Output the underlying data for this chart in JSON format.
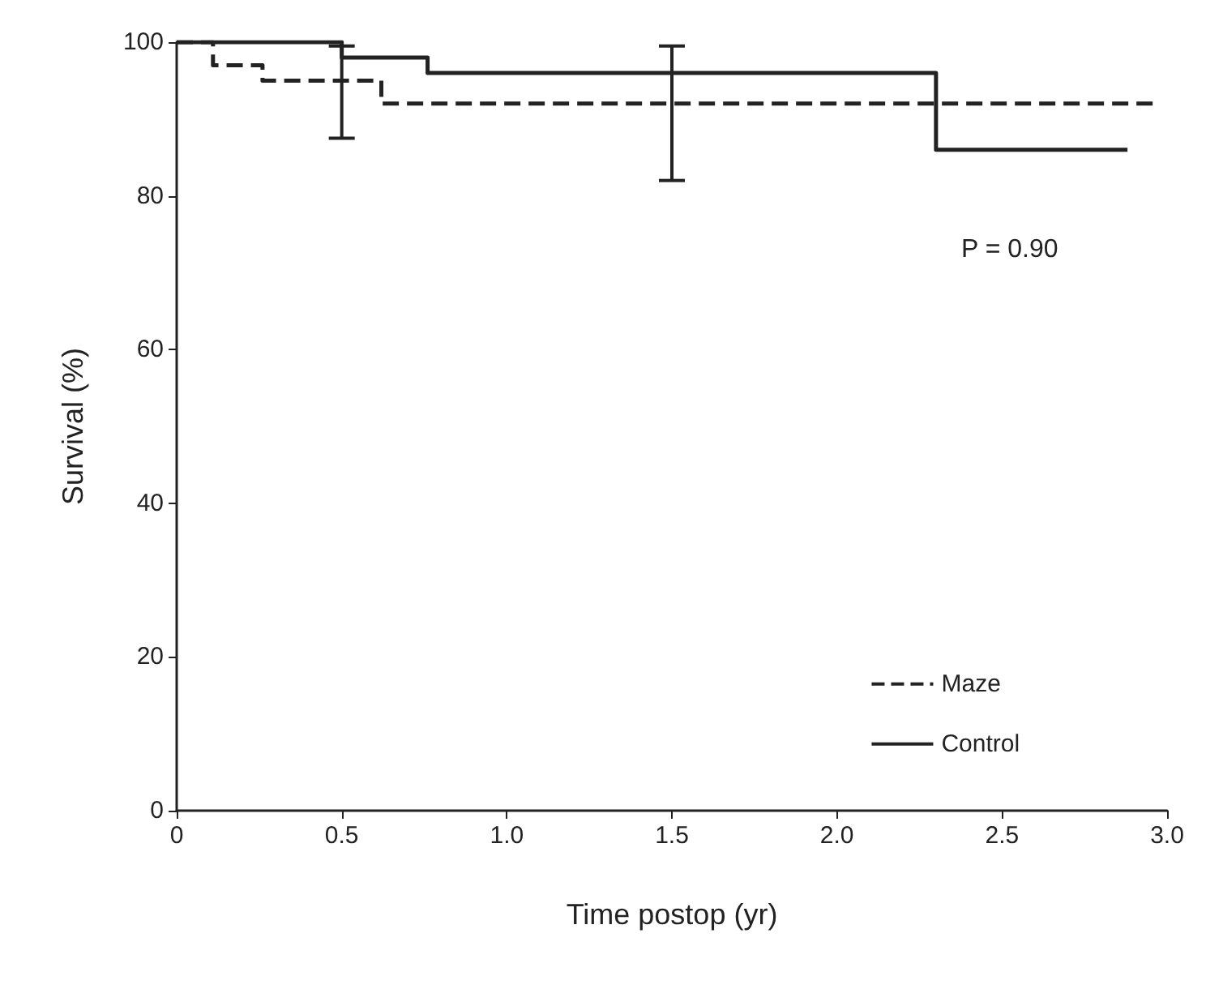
{
  "chart_data": {
    "type": "step",
    "xlabel": "Time postop (yr)",
    "ylabel": "Survival (%)",
    "xlim": [
      0,
      3
    ],
    "ylim": [
      0,
      100
    ],
    "xticks": [
      0,
      0.5,
      {
        "value": 1,
        "label": "1.0"
      },
      1.5,
      {
        "value": 2,
        "label": "2.0"
      },
      2.5,
      {
        "value": 3,
        "label": "3.0"
      }
    ],
    "yticks": [
      0,
      20,
      40,
      60,
      80,
      100
    ],
    "series": [
      {
        "name": "Maze",
        "color": "#222222",
        "line_style": "dashed",
        "x": [
          0,
          0.11,
          0.26,
          0.5,
          0.62,
          2.97
        ],
        "values": [
          100,
          97,
          95,
          95,
          92,
          92
        ],
        "errors": [
          null,
          null,
          null,
          [
            87.5,
            99.5
          ],
          null,
          null
        ]
      },
      {
        "name": "Control",
        "color": "#222222",
        "line_style": "solid",
        "x": [
          0,
          0.5,
          0.76,
          1.5,
          2.3,
          2.88
        ],
        "values": [
          100,
          98,
          96,
          96,
          86,
          86
        ],
        "errors": [
          null,
          null,
          null,
          [
            82,
            99.5
          ],
          null,
          null
        ]
      }
    ],
    "annotations": [
      "P = 0.90"
    ],
    "grid": false,
    "legend": "bottom right",
    "marker": "none"
  }
}
